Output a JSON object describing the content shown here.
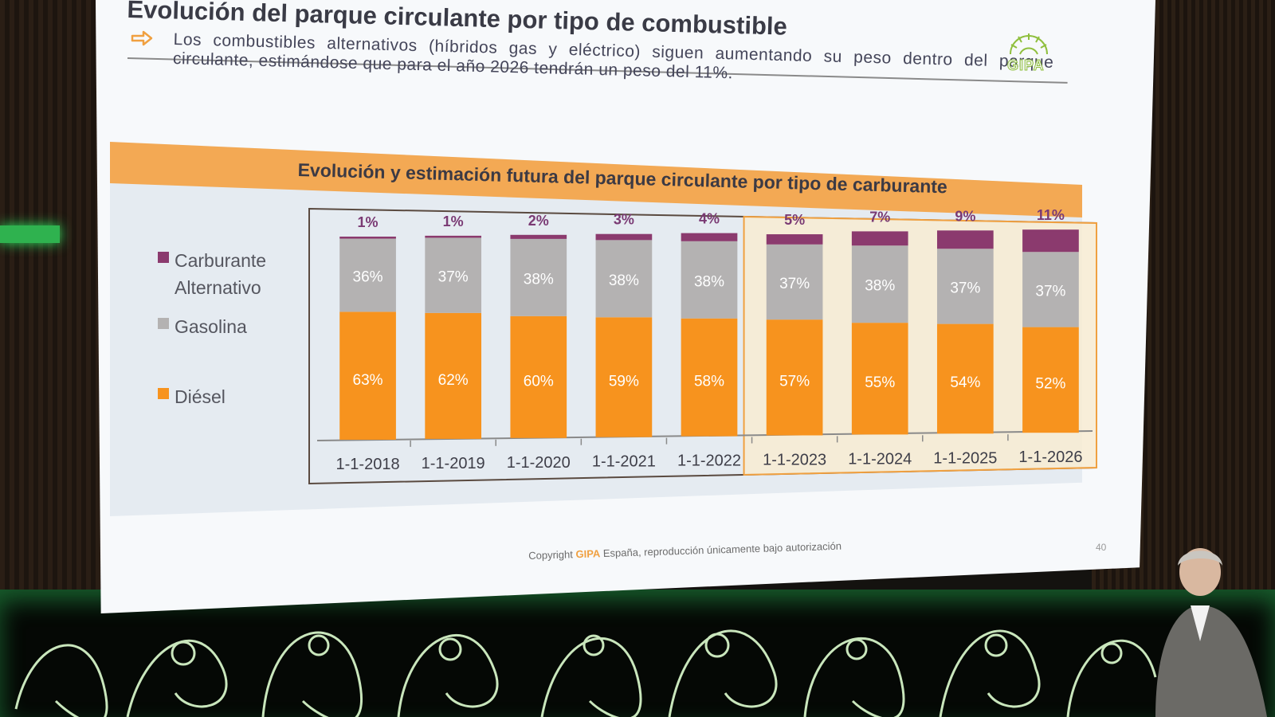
{
  "slide": {
    "title": "Evolución del parque circulante por tipo de combustible",
    "subtitle": "Los combustibles alternativos (híbridos gas y eléctrico)  siguen aumentando su peso dentro del parque circulante, estimándose que para el año 2026 tendrán un peso del 11%.",
    "logo_text": "GIPA",
    "copyright_prefix": "Copyright ",
    "copyright_brand": "GIPA",
    "copyright_suffix": " España, reproducción únicamente bajo autorización",
    "page_number": "40"
  },
  "chart_data": {
    "type": "bar",
    "stacked": true,
    "title": "Evolución y estimación futura del parque circulante por tipo de carburante",
    "categories": [
      "1-1-2018",
      "1-1-2019",
      "1-1-2020",
      "1-1-2021",
      "1-1-2022",
      "1-1-2023",
      "1-1-2024",
      "1-1-2025",
      "1-1-2026"
    ],
    "estimated_from_index": 5,
    "series": [
      {
        "name": "Diésel",
        "color": "#f7931e",
        "values": [
          63,
          62,
          60,
          59,
          58,
          57,
          55,
          54,
          52
        ],
        "labels": [
          "63%",
          "62%",
          "60%",
          "59%",
          "58%",
          "57%",
          "55%",
          "54%",
          "52%"
        ]
      },
      {
        "name": "Gasolina",
        "color": "#b4b2b2",
        "values": [
          36,
          37,
          38,
          38,
          38,
          37,
          38,
          37,
          37
        ],
        "labels": [
          "36%",
          "37%",
          "38%",
          "38%",
          "38%",
          "37%",
          "38%",
          "37%",
          "37%"
        ]
      },
      {
        "name": "Carburante\nAlternativo",
        "color": "#8b3a6e",
        "values": [
          1,
          1,
          2,
          3,
          4,
          5,
          7,
          9,
          11
        ],
        "labels": [
          "1%",
          "1%",
          "2%",
          "3%",
          "4%",
          "5%",
          "7%",
          "9%",
          "11%"
        ]
      }
    ],
    "legend_order": [
      2,
      1,
      0
    ],
    "ylim": [
      0,
      100
    ],
    "legend": "left",
    "grid": false
  }
}
